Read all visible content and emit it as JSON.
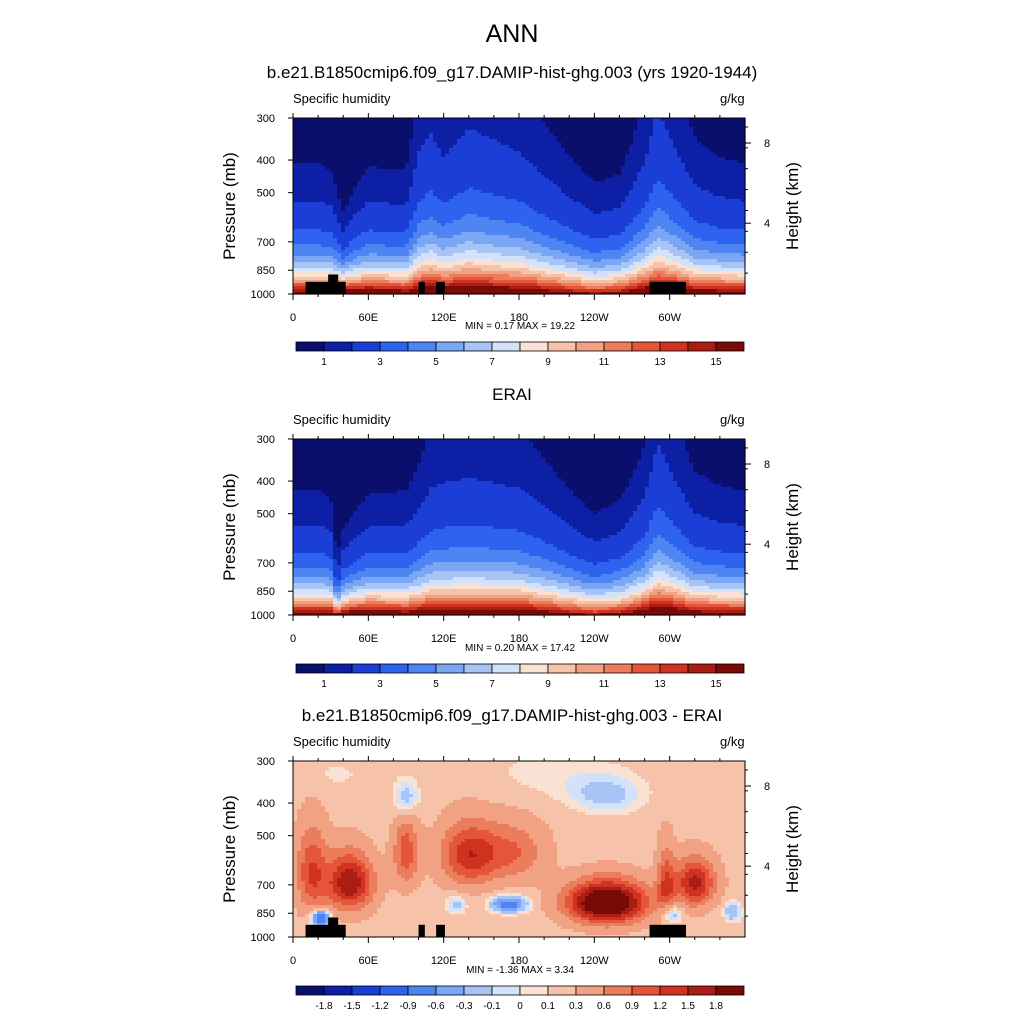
{
  "figure": {
    "main_title": "ANN"
  },
  "colorbar_colors": {
    "absolute": [
      "#0a0f6e",
      "#0c1fa5",
      "#1a3ed6",
      "#2d63ee",
      "#4d86f2",
      "#7aa6f4",
      "#a6c4f6",
      "#d2e2fa",
      "#f9e2d3",
      "#f6c3aa",
      "#f1a283",
      "#ec7d5c",
      "#e4553a",
      "#cf3220",
      "#a91d12",
      "#7a0a06"
    ],
    "difference": [
      "#0a0f6e",
      "#0c1fa5",
      "#1a3ed6",
      "#2d63ee",
      "#4d86f2",
      "#7aa6f4",
      "#a6c4f6",
      "#d2e2fa",
      "#f9e2d3",
      "#f6c3aa",
      "#f1a283",
      "#ec7d5c",
      "#e4553a",
      "#cf3220",
      "#a91d12",
      "#7a0a06"
    ]
  },
  "chart_data": [
    {
      "type": "heatmap",
      "title": "b.e21.B1850cmip6.f09_g17.DAMIP-hist-ghg.003 (yrs 1920-1944)",
      "field": "Specific humidity",
      "units": "g/kg",
      "ylabel": "Pressure (mb)",
      "ylabel_right": "Height (km)",
      "x_ticks": [
        "0",
        "60E",
        "120E",
        "180",
        "120W",
        "60W"
      ],
      "x_tick_values": [
        0,
        60,
        120,
        180,
        240,
        300
      ],
      "xlim": [
        0,
        360
      ],
      "y_ticks": [
        "300",
        "400",
        "500",
        "700",
        "850",
        "1000"
      ],
      "y_tick_values": [
        300,
        400,
        500,
        700,
        850,
        1000
      ],
      "ylim": [
        1000,
        300
      ],
      "right_ticks": [
        "8",
        "4"
      ],
      "min_max": "MIN =   0.17  MAX =  19.22",
      "colorbar_labels": [
        "1",
        "3",
        "5",
        "7",
        "9",
        "11",
        "13",
        "15"
      ],
      "levels": [
        0.5,
        1,
        2,
        3,
        4,
        5,
        6,
        7,
        8,
        9,
        10,
        11,
        12,
        13,
        14,
        15
      ],
      "profile": {
        "lon": [
          0,
          20,
          30,
          40,
          50,
          60,
          90,
          100,
          110,
          120,
          140,
          160,
          180,
          200,
          240,
          260,
          280,
          290,
          295,
          310,
          320,
          340,
          360
        ],
        "surface_q": [
          14,
          14,
          14,
          16,
          15,
          15,
          14,
          15,
          16,
          15,
          16,
          15,
          15,
          14,
          12,
          13,
          15,
          16,
          16,
          15,
          14,
          14,
          14
        ],
        "scale_height_mb": [
          170,
          170,
          165,
          120,
          150,
          165,
          165,
          220,
          230,
          215,
          235,
          230,
          220,
          200,
          160,
          165,
          210,
          250,
          240,
          210,
          190,
          175,
          170
        ]
      }
    },
    {
      "type": "heatmap",
      "title": "ERAI",
      "field": "Specific humidity",
      "units": "g/kg",
      "ylabel": "Pressure (mb)",
      "ylabel_right": "Height (km)",
      "x_ticks": [
        "0",
        "60E",
        "120E",
        "180",
        "120W",
        "60W"
      ],
      "x_tick_values": [
        0,
        60,
        120,
        180,
        240,
        300
      ],
      "xlim": [
        0,
        360
      ],
      "y_ticks": [
        "300",
        "400",
        "500",
        "700",
        "850",
        "1000"
      ],
      "y_tick_values": [
        300,
        400,
        500,
        700,
        850,
        1000
      ],
      "ylim": [
        1000,
        300
      ],
      "right_ticks": [
        "8",
        "4"
      ],
      "min_max": "MIN =   0.20  MAX =  17.42",
      "colorbar_labels": [
        "1",
        "3",
        "5",
        "7",
        "9",
        "11",
        "13",
        "15"
      ],
      "levels": [
        0.5,
        1,
        2,
        3,
        4,
        5,
        6,
        7,
        8,
        9,
        10,
        11,
        12,
        13,
        14,
        15
      ],
      "profile": {
        "lon": [
          0,
          20,
          30,
          35,
          40,
          50,
          60,
          90,
          110,
          120,
          140,
          160,
          180,
          200,
          240,
          260,
          280,
          290,
          295,
          310,
          320,
          340,
          360
        ],
        "surface_q": [
          14,
          14,
          14,
          12,
          14,
          15,
          15,
          14,
          15,
          15,
          15,
          15,
          15,
          14,
          12,
          13,
          15,
          16,
          16,
          15,
          14,
          14,
          14
        ],
        "scale_height_mb": [
          165,
          165,
          160,
          100,
          130,
          145,
          160,
          165,
          205,
          210,
          215,
          210,
          205,
          190,
          150,
          160,
          195,
          240,
          230,
          200,
          180,
          170,
          165
        ]
      }
    },
    {
      "type": "heatmap",
      "title": "b.e21.B1850cmip6.f09_g17.DAMIP-hist-ghg.003 - ERAI",
      "field": "Specific humidity",
      "units": "g/kg",
      "ylabel": "Pressure (mb)",
      "ylabel_right": "Height (km)",
      "x_ticks": [
        "0",
        "60E",
        "120E",
        "180",
        "120W",
        "60W"
      ],
      "x_tick_values": [
        0,
        60,
        120,
        180,
        240,
        300
      ],
      "xlim": [
        0,
        360
      ],
      "y_ticks": [
        "300",
        "400",
        "500",
        "700",
        "850",
        "1000"
      ],
      "y_tick_values": [
        300,
        400,
        500,
        700,
        850,
        1000
      ],
      "ylim": [
        1000,
        300
      ],
      "right_ticks": [
        "8",
        "4"
      ],
      "min_max": "MIN =  -1.36  MAX =   3.34",
      "colorbar_labels": [
        "-1.8",
        "-1.5",
        "-1.2",
        "-0.9",
        "-0.6",
        "-0.3",
        "-0.1",
        "0",
        "0.1",
        "0.3",
        "0.6",
        "0.9",
        "1.2",
        "1.5",
        "1.8"
      ],
      "levels": [
        -1.8,
        -1.5,
        -1.2,
        -0.9,
        -0.6,
        -0.3,
        -0.1,
        0,
        0.1,
        0.3,
        0.6,
        0.9,
        1.2,
        1.5,
        1.8
      ],
      "anomalies": [
        {
          "lon": 45,
          "p": 690,
          "amp": 1.6,
          "sl": 18,
          "sp": 130
        },
        {
          "lon": 15,
          "p": 640,
          "amp": 1.0,
          "sl": 12,
          "sp": 180
        },
        {
          "lon": 22,
          "p": 880,
          "amp": -1.3,
          "sl": 7,
          "sp": 50
        },
        {
          "lon": 90,
          "p": 560,
          "amp": 0.9,
          "sl": 10,
          "sp": 130
        },
        {
          "lon": 140,
          "p": 570,
          "amp": 1.2,
          "sl": 22,
          "sp": 120
        },
        {
          "lon": 175,
          "p": 560,
          "amp": 0.7,
          "sl": 25,
          "sp": 110
        },
        {
          "lon": 172,
          "p": 800,
          "amp": -1.0,
          "sl": 14,
          "sp": 45
        },
        {
          "lon": 130,
          "p": 800,
          "amp": -0.4,
          "sl": 8,
          "sp": 50
        },
        {
          "lon": 250,
          "p": 790,
          "amp": 2.4,
          "sl": 30,
          "sp": 110
        },
        {
          "lon": 320,
          "p": 690,
          "amp": 1.4,
          "sl": 16,
          "sp": 110
        },
        {
          "lon": 297,
          "p": 700,
          "amp": 0.9,
          "sl": 7,
          "sp": 170
        },
        {
          "lon": 300,
          "p": 850,
          "amp": -0.7,
          "sl": 9,
          "sp": 60
        },
        {
          "lon": 350,
          "p": 840,
          "amp": -0.5,
          "sl": 7,
          "sp": 60
        },
        {
          "lon": 90,
          "p": 390,
          "amp": -0.5,
          "sl": 10,
          "sp": 50
        },
        {
          "lon": 250,
          "p": 380,
          "amp": -0.35,
          "sl": 30,
          "sp": 50
        },
        {
          "lon": 205,
          "p": 330,
          "amp": -0.15,
          "sl": 60,
          "sp": 60
        },
        {
          "lon": 30,
          "p": 330,
          "amp": -0.12,
          "sl": 40,
          "sp": 50
        }
      ]
    }
  ]
}
